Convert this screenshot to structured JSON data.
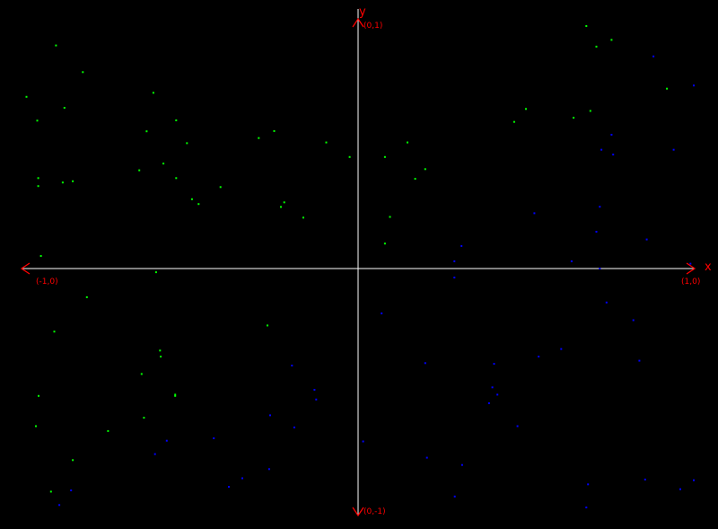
{
  "chart_data": {
    "type": "scatter",
    "title": "",
    "xlabel": "x",
    "ylabel": "y",
    "xlim": [
      -1,
      1
    ],
    "ylim": [
      -1,
      1
    ],
    "grid": false,
    "axis_color": "#ffffff",
    "label_color": "#ff0000",
    "tick_labels": {
      "x_min": "(-1,0)",
      "x_max": "(1,0)",
      "y_max": "(0,1)",
      "y_min": "(0,-1)"
    },
    "series": [
      {
        "color": "#00ff00",
        "points": [
          [
            -0.9,
            0.92
          ],
          [
            -0.82,
            0.81
          ],
          [
            -0.988,
            0.708
          ],
          [
            -0.956,
            0.61
          ],
          [
            -0.875,
            0.663
          ],
          [
            -0.61,
            0.725
          ],
          [
            -0.63,
            0.566
          ],
          [
            -0.542,
            0.611
          ],
          [
            -0.51,
            0.517
          ],
          [
            -0.953,
            0.373
          ],
          [
            -0.953,
            0.34
          ],
          [
            -0.85,
            0.36
          ],
          [
            -0.88,
            0.355
          ],
          [
            -0.652,
            0.405
          ],
          [
            -0.58,
            0.433
          ],
          [
            -0.542,
            0.373
          ],
          [
            -0.495,
            0.286
          ],
          [
            -0.475,
            0.266
          ],
          [
            -0.41,
            0.336
          ],
          [
            -0.296,
            0.538
          ],
          [
            -0.25,
            0.567
          ],
          [
            -0.23,
            0.254
          ],
          [
            -0.22,
            0.273
          ],
          [
            -0.163,
            0.21
          ],
          [
            -0.095,
            0.52
          ],
          [
            -0.025,
            0.46
          ],
          [
            0.08,
            0.46
          ],
          [
            0.147,
            0.52
          ],
          [
            0.2,
            0.41
          ],
          [
            0.17,
            0.37
          ],
          [
            0.095,
            0.213
          ],
          [
            0.08,
            0.103
          ],
          [
            -0.945,
            0.052
          ],
          [
            -0.602,
            -0.015
          ],
          [
            -0.808,
            -0.118
          ],
          [
            -0.905,
            -0.26
          ],
          [
            -0.59,
            -0.338
          ],
          [
            -0.588,
            -0.363
          ],
          [
            -0.645,
            -0.435
          ],
          [
            -0.545,
            -0.525
          ],
          [
            -0.545,
            -0.52
          ],
          [
            -0.952,
            -0.525
          ],
          [
            -0.96,
            -0.65
          ],
          [
            -0.745,
            -0.67
          ],
          [
            -0.638,
            -0.615
          ],
          [
            -0.85,
            -0.79
          ],
          [
            -0.915,
            -0.92
          ],
          [
            -0.27,
            -0.235
          ],
          [
            0.465,
            0.605
          ],
          [
            0.5,
            0.658
          ],
          [
            0.642,
            0.622
          ],
          [
            0.692,
            0.65
          ],
          [
            0.92,
            0.742
          ],
          [
            0.71,
            0.915
          ],
          [
            0.755,
            0.943
          ],
          [
            0.68,
            1.0
          ]
        ]
      },
      {
        "color": "#0000ff",
        "points": [
          [
            1.0,
            0.755
          ],
          [
            0.88,
            0.875
          ],
          [
            0.755,
            0.552
          ],
          [
            0.76,
            0.47
          ],
          [
            0.725,
            0.49
          ],
          [
            0.94,
            0.49
          ],
          [
            0.525,
            0.228
          ],
          [
            0.72,
            0.255
          ],
          [
            0.71,
            0.152
          ],
          [
            0.86,
            0.12
          ],
          [
            0.636,
            0.03
          ],
          [
            0.72,
            0.0
          ],
          [
            0.99,
            0.02
          ],
          [
            0.308,
            0.093
          ],
          [
            0.287,
            0.03
          ],
          [
            0.287,
            -0.037
          ],
          [
            0.74,
            -0.14
          ],
          [
            0.82,
            -0.213
          ],
          [
            0.838,
            -0.38
          ],
          [
            0.605,
            -0.332
          ],
          [
            0.538,
            -0.363
          ],
          [
            0.405,
            -0.393
          ],
          [
            0.2,
            -0.39
          ],
          [
            0.07,
            -0.185
          ],
          [
            0.415,
            -0.52
          ],
          [
            0.39,
            -0.555
          ],
          [
            0.4,
            -0.49
          ],
          [
            0.475,
            -0.65
          ],
          [
            0.015,
            -0.713
          ],
          [
            0.205,
            -0.78
          ],
          [
            0.31,
            -0.81
          ],
          [
            0.288,
            -0.94
          ],
          [
            0.855,
            -0.87
          ],
          [
            1.0,
            -0.873
          ],
          [
            0.96,
            -0.91
          ],
          [
            0.685,
            -0.89
          ],
          [
            0.68,
            -0.985
          ],
          [
            -0.197,
            -0.4
          ],
          [
            -0.13,
            -0.5
          ],
          [
            -0.125,
            -0.54
          ],
          [
            -0.19,
            -0.655
          ],
          [
            -0.262,
            -0.605
          ],
          [
            -0.265,
            -0.827
          ],
          [
            -0.345,
            -0.865
          ],
          [
            -0.385,
            -0.9
          ],
          [
            -0.43,
            -0.7
          ],
          [
            -0.57,
            -0.71
          ],
          [
            -0.605,
            -0.765
          ],
          [
            -0.855,
            -0.915
          ],
          [
            -0.89,
            -0.975
          ]
        ]
      }
    ]
  }
}
